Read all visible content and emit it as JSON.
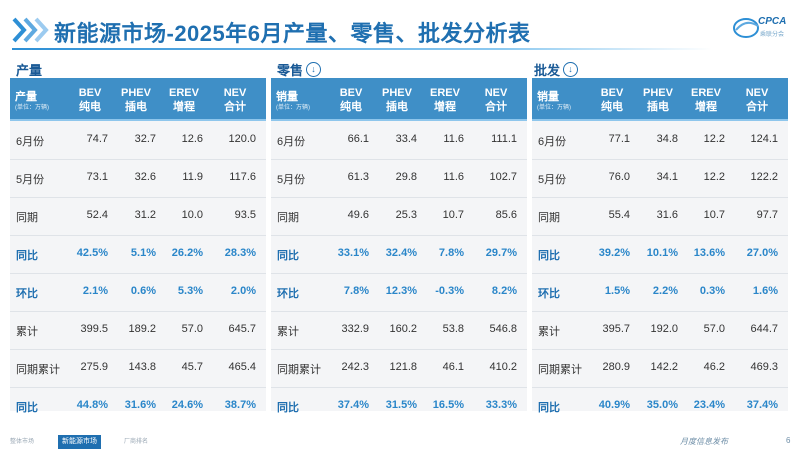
{
  "title": "新能源市场-2025年6月产量、零售、批发分析表",
  "logo": {
    "text": "CPCA",
    "sub": "乘联分会"
  },
  "headers": {
    "bev": [
      "BEV",
      "纯电"
    ],
    "phev": [
      "PHEV",
      "插电"
    ],
    "erev": [
      "EREV",
      "增程"
    ],
    "nev": [
      "NEV",
      "合计"
    ],
    "unit": "(单位：万辆)"
  },
  "panels": [
    {
      "section": "产量",
      "corner": "产量",
      "has_icon": false,
      "rows": [
        {
          "label": "6月份",
          "values": [
            "74.7",
            "32.7",
            "12.6",
            "120.0"
          ],
          "highlight": false
        },
        {
          "label": "5月份",
          "values": [
            "73.1",
            "32.6",
            "11.9",
            "117.6"
          ],
          "highlight": false
        },
        {
          "label": "同期",
          "values": [
            "52.4",
            "31.2",
            "10.0",
            "93.5"
          ],
          "highlight": false
        },
        {
          "label": "同比",
          "values": [
            "42.5%",
            "5.1%",
            "26.2%",
            "28.3%"
          ],
          "highlight": true
        },
        {
          "label": "环比",
          "values": [
            "2.1%",
            "0.6%",
            "5.3%",
            "2.0%"
          ],
          "highlight": true
        },
        {
          "label": "累计",
          "values": [
            "399.5",
            "189.2",
            "57.0",
            "645.7"
          ],
          "highlight": false
        },
        {
          "label": "同期累计",
          "values": [
            "275.9",
            "143.8",
            "45.7",
            "465.4"
          ],
          "highlight": false
        },
        {
          "label": "同比",
          "values": [
            "44.8%",
            "31.6%",
            "24.6%",
            "38.7%"
          ],
          "highlight": true
        }
      ]
    },
    {
      "section": "零售",
      "corner": "销量",
      "has_icon": true,
      "rows": [
        {
          "label": "6月份",
          "values": [
            "66.1",
            "33.4",
            "11.6",
            "111.1"
          ],
          "highlight": false
        },
        {
          "label": "5月份",
          "values": [
            "61.3",
            "29.8",
            "11.6",
            "102.7"
          ],
          "highlight": false
        },
        {
          "label": "同期",
          "values": [
            "49.6",
            "25.3",
            "10.7",
            "85.6"
          ],
          "highlight": false
        },
        {
          "label": "同比",
          "values": [
            "33.1%",
            "32.4%",
            "7.8%",
            "29.7%"
          ],
          "highlight": true
        },
        {
          "label": "环比",
          "values": [
            "7.8%",
            "12.3%",
            "-0.3%",
            "8.2%"
          ],
          "highlight": true
        },
        {
          "label": "累计",
          "values": [
            "332.9",
            "160.2",
            "53.8",
            "546.8"
          ],
          "highlight": false
        },
        {
          "label": "同期累计",
          "values": [
            "242.3",
            "121.8",
            "46.1",
            "410.2"
          ],
          "highlight": false
        },
        {
          "label": "同比",
          "values": [
            "37.4%",
            "31.5%",
            "16.5%",
            "33.3%"
          ],
          "highlight": true
        }
      ]
    },
    {
      "section": "批发",
      "corner": "销量",
      "has_icon": true,
      "rows": [
        {
          "label": "6月份",
          "values": [
            "77.1",
            "34.8",
            "12.2",
            "124.1"
          ],
          "highlight": false
        },
        {
          "label": "5月份",
          "values": [
            "76.0",
            "34.1",
            "12.2",
            "122.2"
          ],
          "highlight": false
        },
        {
          "label": "同期",
          "values": [
            "55.4",
            "31.6",
            "10.7",
            "97.7"
          ],
          "highlight": false
        },
        {
          "label": "同比",
          "values": [
            "39.2%",
            "10.1%",
            "13.6%",
            "27.0%"
          ],
          "highlight": true
        },
        {
          "label": "环比",
          "values": [
            "1.5%",
            "2.2%",
            "0.3%",
            "1.6%"
          ],
          "highlight": true
        },
        {
          "label": "累计",
          "values": [
            "395.7",
            "192.0",
            "57.0",
            "644.7"
          ],
          "highlight": false
        },
        {
          "label": "同期累计",
          "values": [
            "280.9",
            "142.2",
            "46.2",
            "469.3"
          ],
          "highlight": false
        },
        {
          "label": "同比",
          "values": [
            "40.9%",
            "35.0%",
            "23.4%",
            "37.4%"
          ],
          "highlight": true
        }
      ]
    }
  ],
  "footer": {
    "tabs": [
      "整体市场",
      "新能源市场",
      "厂商排名"
    ],
    "active_tab": 1,
    "monthly": "月度信息发布",
    "page": "6"
  }
}
